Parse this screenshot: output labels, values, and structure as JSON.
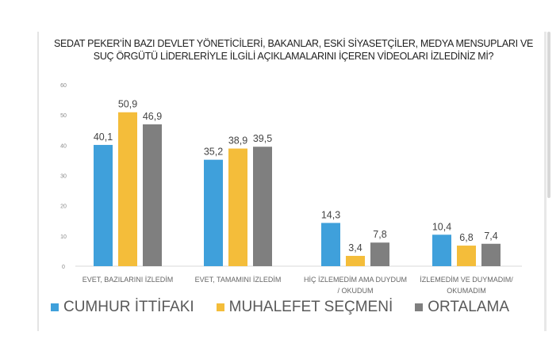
{
  "chart_data": {
    "type": "bar",
    "title": "SEDAT PEKER’İN BAZI DEVLET YÖNETİCİLERİ, BAKANLAR, ESKİ SİYASETÇİLER, MEDYA MENSUPLARI VE SUÇ ÖRGÜTÜ LİDERLERİYLE İLGİLİ AÇIKLAMALARINI İÇEREN VİDEOLARI İZLEDİNİZ Mİ?",
    "categories": [
      [
        "EVET, BAZILARINI İZLEDİM"
      ],
      [
        "EVET, TAMAMINI İZLEDİM"
      ],
      [
        "HİÇ İZLEMEDİM AMA DUYDUM",
        "/ OKUDUM"
      ],
      [
        "İZLEMEDİM VE DUYMADIM/",
        "OKUMADIM"
      ]
    ],
    "series": [
      {
        "name": "CUMHUR İTTİFAKI",
        "color": "#3fa0db",
        "values": [
          40.1,
          35.2,
          14.3,
          10.4
        ],
        "labels": [
          "40,1",
          "35,2",
          "14,3",
          "10,4"
        ]
      },
      {
        "name": "MUHALEFET SEÇMENİ",
        "color": "#f4bd3a",
        "values": [
          50.9,
          38.9,
          3.4,
          6.8
        ],
        "labels": [
          "50,9",
          "38,9",
          "3,4",
          "6,8"
        ]
      },
      {
        "name": "ORTALAMA",
        "color": "#7f7f7f",
        "values": [
          46.9,
          39.5,
          7.8,
          7.4
        ],
        "labels": [
          "46,9",
          "39,5",
          "7,8",
          "7,4"
        ]
      }
    ],
    "ylim": [
      0,
      60
    ],
    "yticks": [
      "0",
      "10",
      "20",
      "30",
      "40",
      "50",
      "60"
    ],
    "grid": false,
    "legend": "bottom"
  }
}
